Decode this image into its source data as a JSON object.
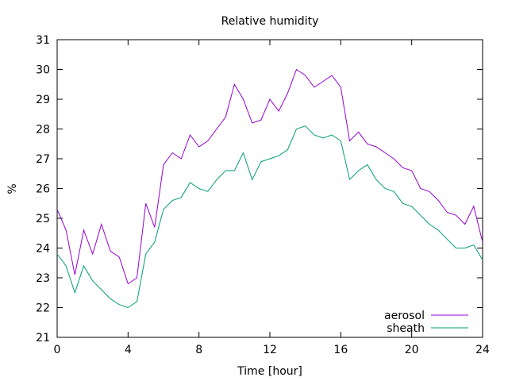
{
  "chart_data": {
    "type": "line",
    "title": "Relative humidity",
    "xlabel": "Time [hour]",
    "ylabel": "%",
    "xlim": [
      0,
      24
    ],
    "ylim": [
      21,
      31
    ],
    "xticks": [
      0,
      4,
      8,
      12,
      16,
      20,
      24
    ],
    "yticks": [
      21,
      22,
      23,
      24,
      25,
      26,
      27,
      28,
      29,
      30,
      31
    ],
    "xtick_labels": [
      "0",
      "4",
      "8",
      "12",
      "16",
      "20",
      "24"
    ],
    "ytick_labels": [
      "21",
      "22",
      "23",
      "24",
      "25",
      "26",
      "27",
      "28",
      "29",
      "30",
      "31"
    ],
    "grid": false,
    "legend_position": "bottom-right",
    "x": [
      0,
      0.5,
      1,
      1.5,
      2,
      2.5,
      3,
      3.5,
      4,
      4.5,
      5,
      5.5,
      6,
      6.5,
      7,
      7.5,
      8,
      8.5,
      9,
      9.5,
      10,
      10.5,
      11,
      11.5,
      12,
      12.5,
      13,
      13.5,
      14,
      14.5,
      15,
      15.5,
      16,
      16.5,
      17,
      17.5,
      18,
      18.5,
      19,
      19.5,
      20,
      20.5,
      21,
      21.5,
      22,
      22.5,
      23,
      23.5,
      24
    ],
    "series": [
      {
        "name": "aerosol",
        "color": "#9400d3",
        "values": [
          25.3,
          24.6,
          23.1,
          24.6,
          23.8,
          24.8,
          23.9,
          23.7,
          22.8,
          23.0,
          25.5,
          24.7,
          26.8,
          27.2,
          27.0,
          27.8,
          27.4,
          27.6,
          28.0,
          28.4,
          29.5,
          29.0,
          28.2,
          28.3,
          29.0,
          28.6,
          29.2,
          30.0,
          29.8,
          29.4,
          29.6,
          29.8,
          29.4,
          27.6,
          27.9,
          27.5,
          27.4,
          27.2,
          27.0,
          26.7,
          26.6,
          26.0,
          25.9,
          25.6,
          25.2,
          25.1,
          24.8,
          25.4,
          24.2
        ]
      },
      {
        "name": "sheath",
        "color": "#009e73",
        "values": [
          23.8,
          23.4,
          22.5,
          23.4,
          22.9,
          22.6,
          22.3,
          22.1,
          22.0,
          22.2,
          23.8,
          24.2,
          25.3,
          25.6,
          25.7,
          26.2,
          26.0,
          25.9,
          26.3,
          26.6,
          26.6,
          27.2,
          26.3,
          26.9,
          27.0,
          27.1,
          27.3,
          28.0,
          28.1,
          27.8,
          27.7,
          27.8,
          27.6,
          26.3,
          26.6,
          26.8,
          26.3,
          26.0,
          25.9,
          25.5,
          25.4,
          25.1,
          24.8,
          24.6,
          24.3,
          24.0,
          24.0,
          24.1,
          23.6
        ]
      }
    ]
  }
}
